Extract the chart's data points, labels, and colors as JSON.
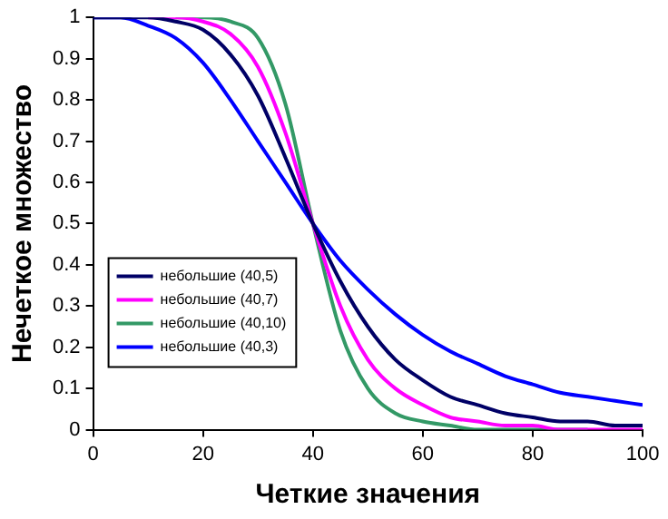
{
  "chart_data": {
    "type": "line",
    "xlabel": "Четкие значения",
    "ylabel": "Нечеткое множество",
    "x": [
      0,
      5,
      10,
      15,
      20,
      25,
      30,
      35,
      40,
      45,
      50,
      55,
      60,
      65,
      70,
      75,
      80,
      85,
      90,
      95,
      100
    ],
    "series": [
      {
        "name": "небольшие (40,5)",
        "color": "#000066",
        "values": [
          1,
          1,
          1,
          0.99,
          0.97,
          0.91,
          0.81,
          0.66,
          0.5,
          0.36,
          0.25,
          0.17,
          0.12,
          0.08,
          0.06,
          0.04,
          0.03,
          0.02,
          0.02,
          0.01,
          0.01
        ]
      },
      {
        "name": "небольшие (40,7)",
        "color": "#ff00ff",
        "values": [
          null,
          null,
          1,
          1,
          0.99,
          0.96,
          0.88,
          0.72,
          0.5,
          0.3,
          0.17,
          0.1,
          0.06,
          0.03,
          0.02,
          0.01,
          0.01,
          0,
          0,
          0,
          0
        ]
      },
      {
        "name": "небольшие (40,10)",
        "color": "#339966",
        "values": [
          null,
          null,
          null,
          1,
          1,
          0.99,
          0.95,
          0.79,
          0.5,
          0.24,
          0.1,
          0.04,
          0.02,
          0.01,
          0,
          0,
          0,
          0,
          0,
          null,
          null
        ]
      },
      {
        "name": "небольшие (40,3)",
        "color": "#0000ff",
        "values": [
          1,
          1,
          0.98,
          0.95,
          0.89,
          0.8,
          0.7,
          0.6,
          0.5,
          0.41,
          0.34,
          0.28,
          0.23,
          0.19,
          0.16,
          0.13,
          0.11,
          0.09,
          0.08,
          0.07,
          0.06
        ]
      }
    ],
    "xlim": [
      0,
      100
    ],
    "xticks": [
      0,
      20,
      40,
      60,
      80,
      100
    ],
    "ylim": [
      0,
      1
    ],
    "yticks": [
      0,
      0.1,
      0.2,
      0.3,
      0.4,
      0.5,
      0.6,
      0.7,
      0.8,
      0.9,
      1
    ],
    "grid": false,
    "legend": "bottom left",
    "marker": "none",
    "line_style": "solid"
  }
}
